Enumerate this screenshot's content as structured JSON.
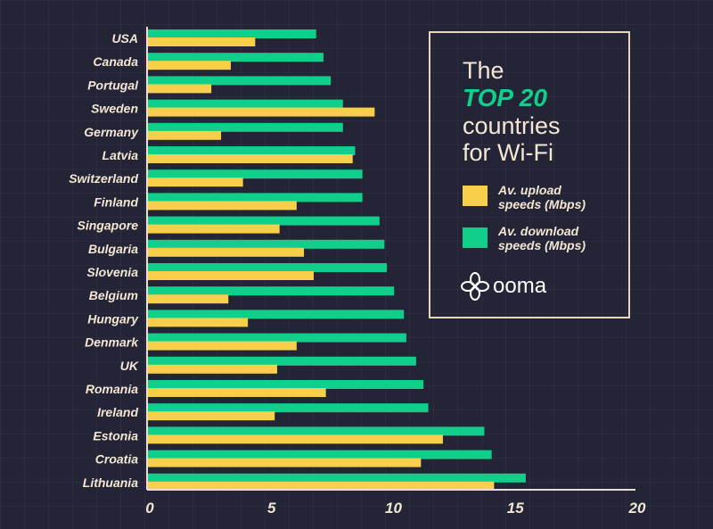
{
  "chart_data": {
    "type": "bar",
    "orientation": "horizontal",
    "title": [
      "The",
      "TOP 20",
      "countries",
      "for Wi-Fi"
    ],
    "categories": [
      "USA",
      "Canada",
      "Portugal",
      "Sweden",
      "Germany",
      "Latvia",
      "Switzerland",
      "Finland",
      "Singapore",
      "Bulgaria",
      "Slovenia",
      "Belgium",
      "Hungary",
      "Denmark",
      "UK",
      "Romania",
      "Ireland",
      "Estonia",
      "Croatia",
      "Lithuania"
    ],
    "series": [
      {
        "name": "Av. download speeds (Mbps)",
        "color": "#10cf8a",
        "values": [
          6.9,
          7.2,
          7.5,
          8.0,
          8.0,
          8.5,
          8.8,
          8.8,
          9.5,
          9.7,
          9.8,
          10.1,
          10.5,
          10.6,
          11.0,
          11.3,
          11.5,
          13.8,
          14.1,
          15.5
        ]
      },
      {
        "name": "Av. upload speeds (Mbps)",
        "color": "#f7cf4a",
        "values": [
          4.4,
          3.4,
          2.6,
          9.3,
          3.0,
          8.4,
          3.9,
          6.1,
          5.4,
          6.4,
          6.8,
          3.3,
          4.1,
          6.1,
          5.3,
          7.3,
          5.2,
          12.1,
          11.2,
          14.2
        ]
      }
    ],
    "xlim": [
      0,
      20
    ],
    "xticks": [
      "0",
      "5",
      "10",
      "15",
      "20"
    ],
    "grid": true,
    "legend_placement": "top-right"
  },
  "legend": {
    "upload": [
      "Av. upload",
      "speeds (Mbps)"
    ],
    "download": [
      "Av. download",
      "speeds (Mbps)"
    ]
  },
  "logo": {
    "text": "ooma",
    "icon": "flower-icon"
  }
}
